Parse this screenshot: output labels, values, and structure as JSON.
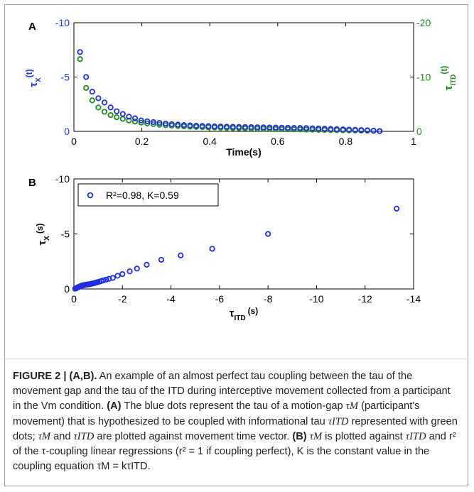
{
  "panel_a": {
    "label": "A",
    "x_tick_labels": [
      "0",
      "0.2",
      "0.4",
      "0.6",
      "0.8",
      "1"
    ],
    "y_left_tick_labels": [
      "0",
      "-5",
      "-10"
    ],
    "y_right_tick_labels": [
      "0",
      "-10",
      "-20"
    ],
    "xlabel": "Time(s)",
    "ylabel_left_main": "τ",
    "ylabel_left_sub": "X",
    "ylabel_left_tail": "(t)",
    "ylabel_right_main": "τ",
    "ylabel_right_sub": "ITD",
    "ylabel_right_tail": "(t)"
  },
  "panel_b": {
    "label": "B",
    "x_tick_labels": [
      "0",
      "-2",
      "-4",
      "-6",
      "-8",
      "-10",
      "-12",
      "-14"
    ],
    "y_tick_labels": [
      "0",
      "-5",
      "-10"
    ],
    "xlabel_main": "τ",
    "xlabel_sub": "ITD",
    "xlabel_tail": "(s)",
    "ylabel_main": "τ",
    "ylabel_sub": "X",
    "ylabel_tail": "(s)",
    "legend_text": "R²=0.98, K=0.59"
  },
  "caption": {
    "lead": "FIGURE 2 | (A,B).",
    "text1": "An example of an almost perfect tau coupling between the tau of the movement gap and the tau of the ITD during interceptive movement collected from a participant in the Vm condition.",
    "sec_a": "(A)",
    "text2": "The blue dots represent the tau of a motion-gap",
    "sym_tau_m": "τM",
    "text3": "(participant's movement) that is hypothesized to be coupled with informational tau",
    "sym_tau_itd": "τITD",
    "text4": "represented with green dots;",
    "text5": "and",
    "text6": "are plotted against movement time vector.",
    "sec_b": "(B)",
    "text7": "is plotted against",
    "text8": "and r² of the τ-coupling linear regressions (r² = 1 if coupling perfect), K is the constant value in the coupling equation τM = kτITD."
  },
  "colors": {
    "blue": "#1f2fe0",
    "green": "#1f8a1f",
    "axis": "#000000"
  },
  "chart_data": [
    {
      "type": "scatter",
      "panel": "A",
      "xlabel": "Time(s)",
      "ylabel": "τX(t)",
      "ylabel_right": "τITD(t)",
      "xlim": [
        0,
        1
      ],
      "ylim_left": [
        0,
        -10
      ],
      "ylim_right": [
        0,
        -20
      ],
      "grid": false,
      "series": [
        {
          "name": "τX(t)",
          "axis": "left",
          "color": "#1f2fe0",
          "x": [
            0.018,
            0.036,
            0.054,
            0.072,
            0.09,
            0.108,
            0.126,
            0.144,
            0.162,
            0.18,
            0.198,
            0.216,
            0.234,
            0.252,
            0.27,
            0.288,
            0.306,
            0.324,
            0.342,
            0.36,
            0.378,
            0.396,
            0.414,
            0.432,
            0.45,
            0.468,
            0.486,
            0.504,
            0.522,
            0.54,
            0.558,
            0.576,
            0.594,
            0.612,
            0.63,
            0.648,
            0.666,
            0.684,
            0.702,
            0.72,
            0.738,
            0.756,
            0.774,
            0.792,
            0.81,
            0.828,
            0.846,
            0.864,
            0.882,
            0.9
          ],
          "y": [
            -7.3,
            -5.0,
            -3.65,
            -3.05,
            -2.65,
            -2.2,
            -1.85,
            -1.6,
            -1.35,
            -1.2,
            -1.0,
            -0.92,
            -0.85,
            -0.78,
            -0.72,
            -0.66,
            -0.62,
            -0.58,
            -0.55,
            -0.52,
            -0.5,
            -0.48,
            -0.46,
            -0.44,
            -0.43,
            -0.42,
            -0.41,
            -0.4,
            -0.39,
            -0.38,
            -0.37,
            -0.36,
            -0.35,
            -0.34,
            -0.33,
            -0.32,
            -0.31,
            -0.3,
            -0.28,
            -0.26,
            -0.24,
            -0.22,
            -0.2,
            -0.18,
            -0.16,
            -0.14,
            -0.12,
            -0.1,
            -0.06,
            -0.02
          ]
        },
        {
          "name": "τITD(t)",
          "axis": "right",
          "color": "#1f8a1f",
          "x": [
            0.018,
            0.036,
            0.054,
            0.072,
            0.09,
            0.108,
            0.126,
            0.144,
            0.162,
            0.18,
            0.198,
            0.216,
            0.234,
            0.252,
            0.27,
            0.288,
            0.306,
            0.324,
            0.342,
            0.36,
            0.378,
            0.396,
            0.414,
            0.432,
            0.45,
            0.468,
            0.486,
            0.504,
            0.522,
            0.54,
            0.558,
            0.576,
            0.594,
            0.612,
            0.63,
            0.648,
            0.666,
            0.684,
            0.702,
            0.72,
            0.738,
            0.756,
            0.774,
            0.792,
            0.81,
            0.828,
            0.846,
            0.864,
            0.882,
            0.9
          ],
          "y": [
            -13.3,
            -8.0,
            -5.7,
            -4.4,
            -3.6,
            -3.0,
            -2.6,
            -2.3,
            -2.0,
            -1.8,
            -1.6,
            -1.45,
            -1.33,
            -1.22,
            -1.13,
            -1.05,
            -0.98,
            -0.92,
            -0.87,
            -0.82,
            -0.78,
            -0.74,
            -0.7,
            -0.66,
            -0.63,
            -0.6,
            -0.57,
            -0.54,
            -0.51,
            -0.48,
            -0.46,
            -0.44,
            -0.42,
            -0.4,
            -0.38,
            -0.36,
            -0.34,
            -0.32,
            -0.3,
            -0.28,
            -0.26,
            -0.24,
            -0.22,
            -0.2,
            -0.18,
            -0.16,
            -0.14,
            -0.12,
            -0.09,
            -0.05
          ]
        }
      ]
    },
    {
      "type": "scatter",
      "panel": "B",
      "xlabel": "τITD (s)",
      "ylabel": "τX (s)",
      "xlim": [
        0,
        -14
      ],
      "ylim": [
        0,
        -10
      ],
      "legend": "top-left",
      "grid": false,
      "series": [
        {
          "name": "R²=0.98, K=0.59",
          "color": "#1f2fe0",
          "x": [
            -13.3,
            -8.0,
            -5.7,
            -4.4,
            -3.6,
            -3.0,
            -2.6,
            -2.3,
            -2.0,
            -1.8,
            -1.6,
            -1.45,
            -1.33,
            -1.22,
            -1.13,
            -1.05,
            -0.98,
            -0.92,
            -0.87,
            -0.82,
            -0.78,
            -0.74,
            -0.7,
            -0.66,
            -0.63,
            -0.6,
            -0.57,
            -0.54,
            -0.51,
            -0.48,
            -0.46,
            -0.44,
            -0.42,
            -0.4,
            -0.38,
            -0.36,
            -0.34,
            -0.32,
            -0.3,
            -0.28,
            -0.26,
            -0.24,
            -0.22,
            -0.2,
            -0.18,
            -0.16,
            -0.14,
            -0.12,
            -0.09,
            -0.05
          ],
          "y": [
            -7.3,
            -5.0,
            -3.65,
            -3.05,
            -2.65,
            -2.2,
            -1.85,
            -1.6,
            -1.35,
            -1.2,
            -1.0,
            -0.92,
            -0.85,
            -0.78,
            -0.72,
            -0.66,
            -0.62,
            -0.58,
            -0.55,
            -0.52,
            -0.5,
            -0.48,
            -0.46,
            -0.44,
            -0.43,
            -0.42,
            -0.41,
            -0.4,
            -0.39,
            -0.38,
            -0.37,
            -0.36,
            -0.35,
            -0.34,
            -0.33,
            -0.32,
            -0.31,
            -0.3,
            -0.28,
            -0.26,
            -0.24,
            -0.22,
            -0.2,
            -0.18,
            -0.16,
            -0.14,
            -0.12,
            -0.1,
            -0.06,
            -0.02
          ]
        }
      ]
    }
  ]
}
